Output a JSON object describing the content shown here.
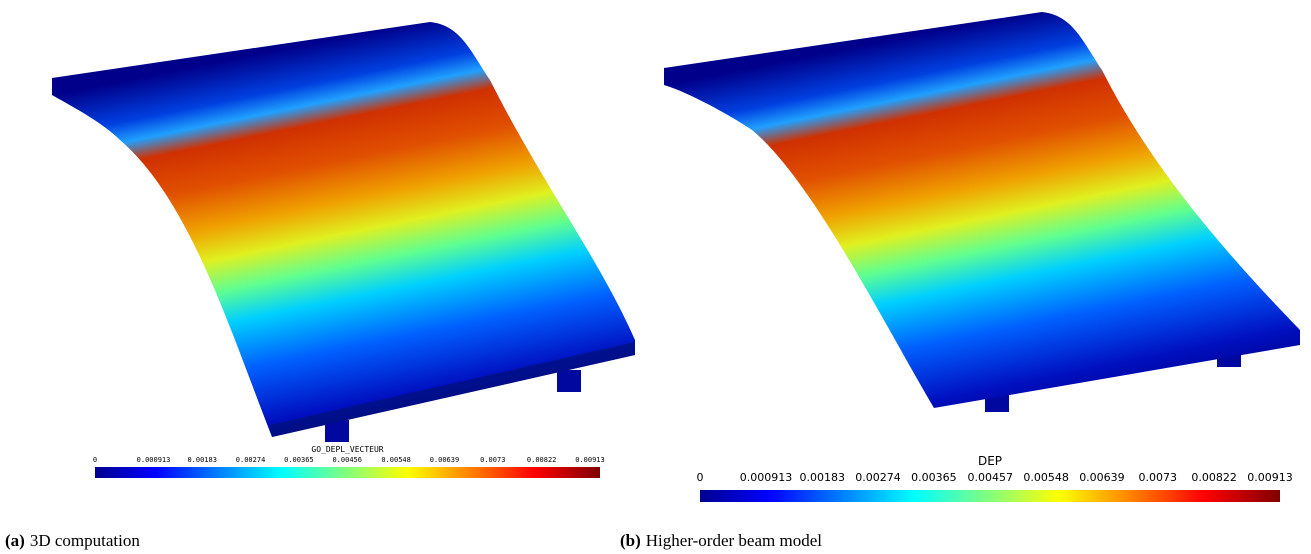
{
  "panels": [
    {
      "colorbar": {
        "title": "GO_DEPL_VECTEUR",
        "ticks": [
          0,
          0.000913,
          0.00183,
          0.00274,
          0.00365,
          0.00456,
          0.00548,
          0.00639,
          0.0073,
          0.00822,
          0.00913
        ]
      },
      "caption": {
        "label": "(a)",
        "text": "3D computation"
      }
    },
    {
      "colorbar": {
        "title": "DEP",
        "ticks": [
          0,
          0.000913,
          0.00183,
          0.00274,
          0.00365,
          0.00457,
          0.00548,
          0.00639,
          0.0073,
          0.00822,
          0.00913
        ]
      },
      "caption": {
        "label": "(b)",
        "text": "Higher-order beam model"
      }
    }
  ]
}
